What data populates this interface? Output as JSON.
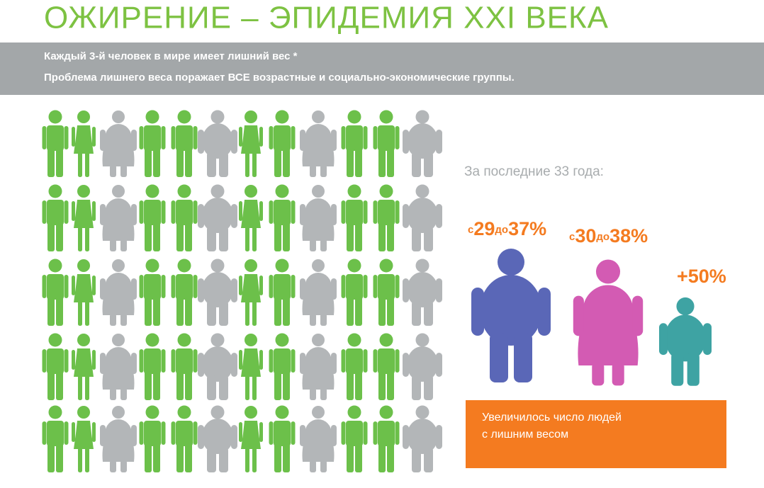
{
  "header": {
    "title": "ОЖИРЕНИЕ – ЭПИДЕМИЯ XXI ВЕКА"
  },
  "banner": {
    "lines": [
      "Каждый 3-й человек в мире имеет лишний вес *",
      "Проблема лишнего веса поражает ВСЕ возрастные и социально-экономические группы."
    ]
  },
  "stats": {
    "caption": "За последние 33 года:",
    "men": {
      "from_prefix": "с",
      "from": "29",
      "to_prefix": "до",
      "to": "37%"
    },
    "women": {
      "from_prefix": "с",
      "from": "30",
      "to_prefix": "до",
      "to": "38%"
    },
    "children": {
      "label": "+50%"
    }
  },
  "note": {
    "lines": [
      "Увеличилось число людей",
      "с лишним весом"
    ]
  }
}
